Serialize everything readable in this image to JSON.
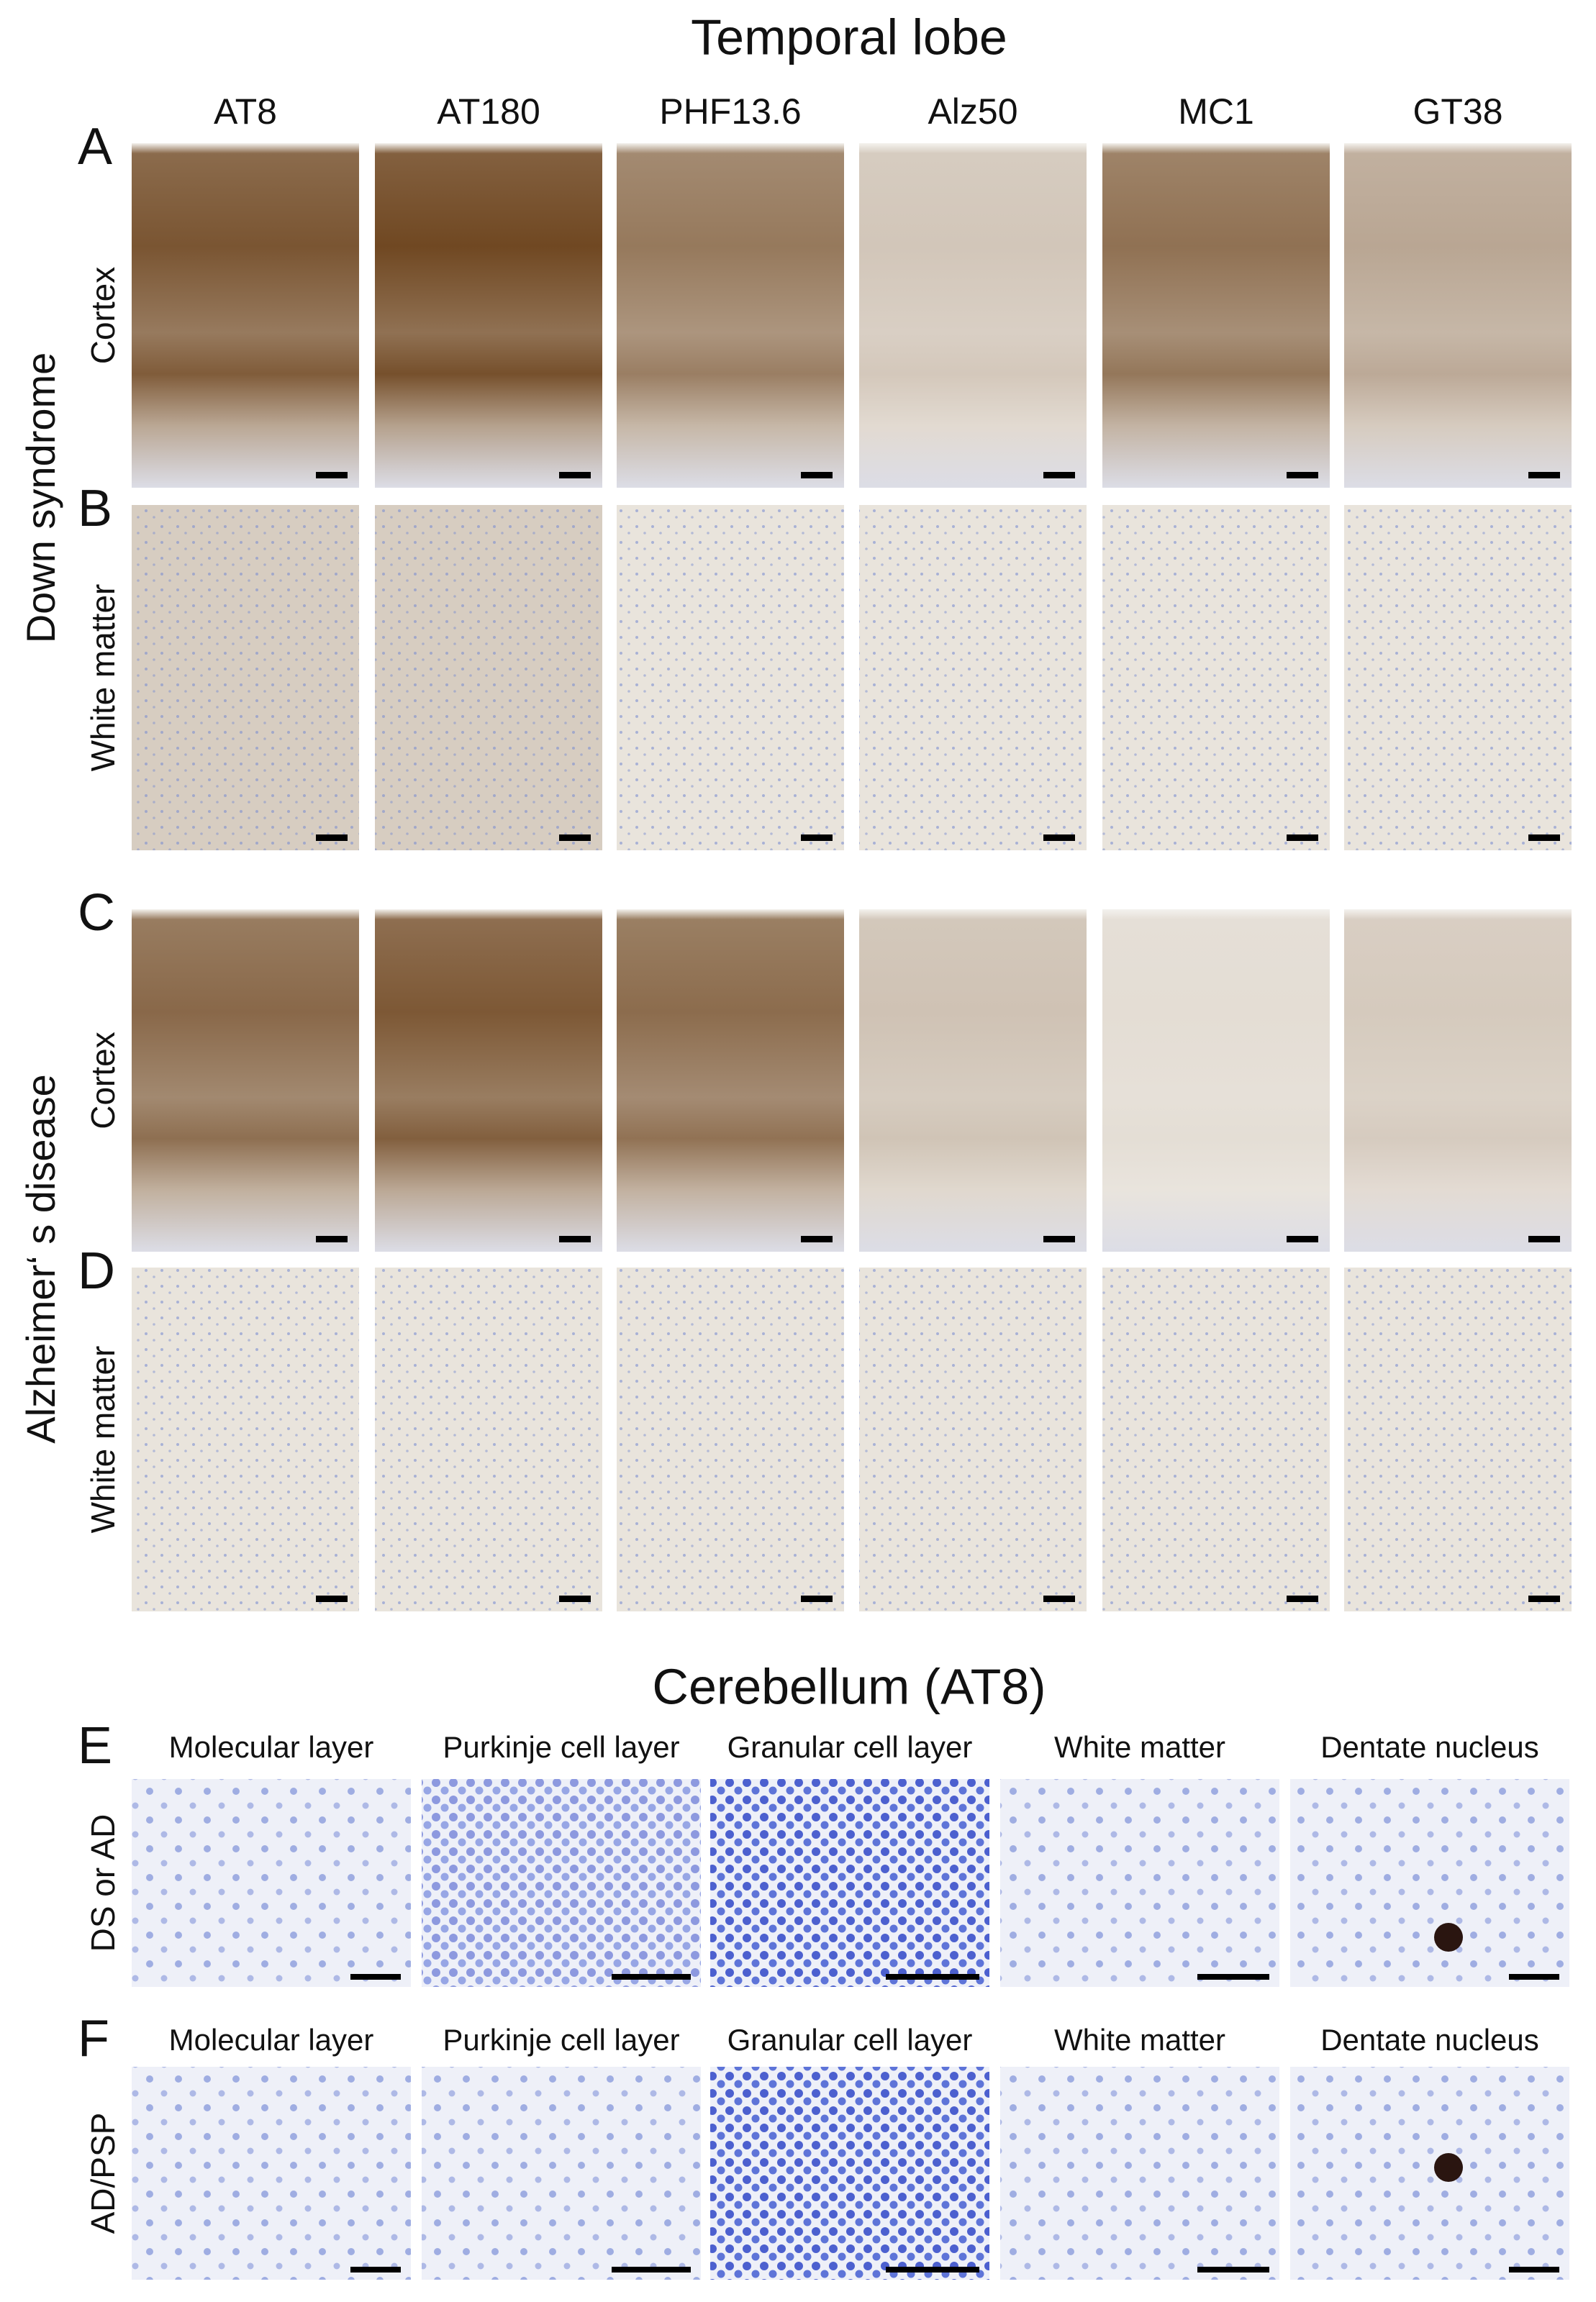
{
  "title": "Temporal lobe",
  "columns": [
    "AT8",
    "AT180",
    "PHF13.6",
    "Alz50",
    "MC1",
    "GT38"
  ],
  "groups": [
    {
      "label": "Down syndrome",
      "rows": [
        {
          "panel": "A",
          "label": "Cortex"
        },
        {
          "panel": "B",
          "label": "White matter"
        }
      ]
    },
    {
      "label": "Alzheimer‘ s disease",
      "rows": [
        {
          "panel": "C",
          "label": "Cortex"
        },
        {
          "panel": "D",
          "label": "White matter"
        }
      ]
    }
  ],
  "cerebellum": {
    "title": "Cerebellum (AT8)",
    "rows": [
      {
        "panel": "E",
        "label": "DS or AD",
        "columns": [
          "Molecular layer",
          "Purkinje cell layer",
          "Granular cell layer",
          "White matter",
          "Dentate nucleus"
        ]
      },
      {
        "panel": "F",
        "label": "AD/PSP",
        "columns": [
          "Molecular layer",
          "Purkinje cell layer",
          "Granular cell layer",
          "White matter",
          "Dentate nucleus"
        ]
      }
    ]
  }
}
